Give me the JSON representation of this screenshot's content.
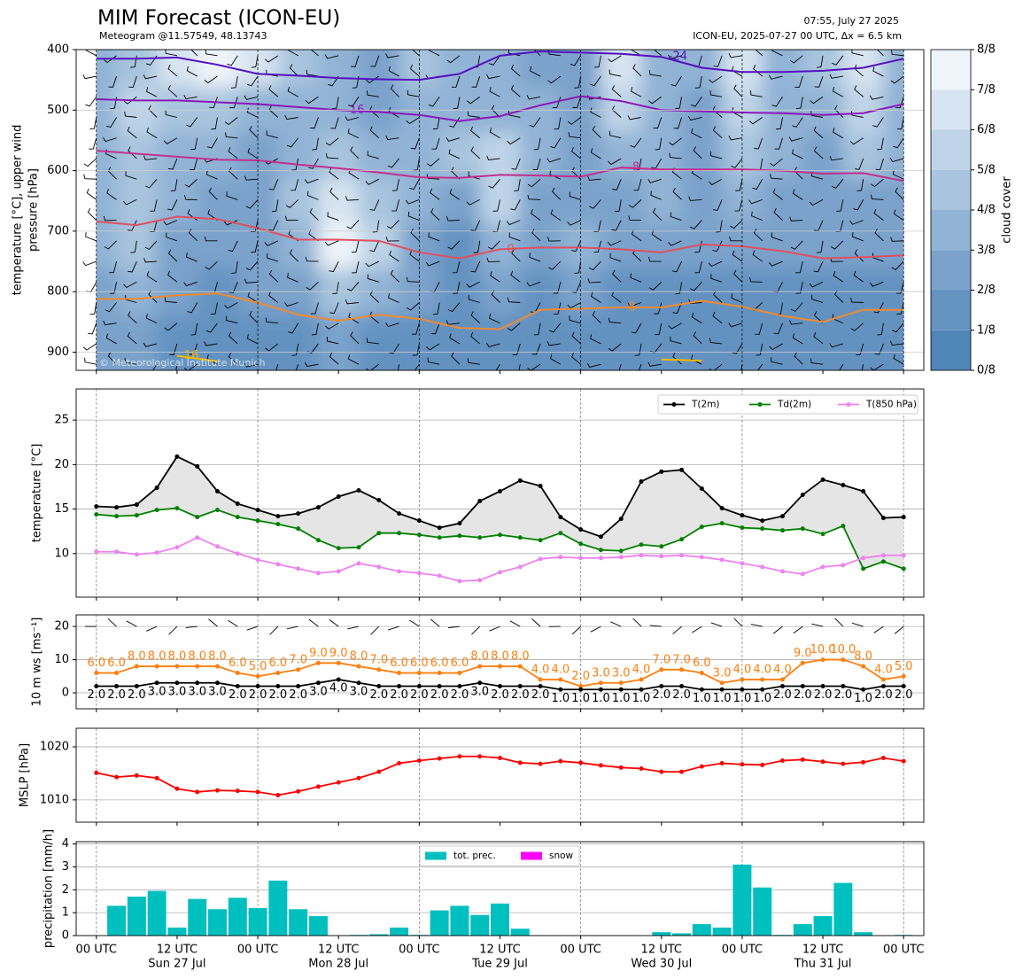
{
  "header": {
    "title": "MIM Forecast (ICON-EU)",
    "subtitle": "Meteogram @11.57549, 48.13743",
    "time": "07:55, July 27 2025",
    "run": "ICON-EU, 2025-07-27 00 UTC, Δx = 6.5 km",
    "watermark": "© Meteorological Institute Munich"
  },
  "chart_data": [
    {
      "type": "contour",
      "ylabel": [
        "temperature [°C], upper wind",
        "pressure [hPa]"
      ],
      "xlim": [
        -3,
        123
      ],
      "ylim": [
        400,
        930
      ],
      "y_inverted": true,
      "yticks": [
        400,
        500,
        600,
        700,
        800,
        900
      ],
      "grid": true,
      "x": [
        0,
        6,
        12,
        18,
        24,
        30,
        36,
        42,
        48,
        54,
        60,
        66,
        72,
        78,
        84,
        90,
        96,
        102,
        108,
        114,
        120
      ],
      "levels": [
        425,
        500,
        575,
        650,
        725,
        800,
        875
      ],
      "cloud_cover": [
        [
          3,
          3,
          3,
          3,
          3,
          2,
          2
        ],
        [
          4,
          5,
          4,
          4,
          4,
          3,
          2
        ],
        [
          6,
          4,
          3,
          3,
          2,
          2,
          1
        ],
        [
          7,
          4,
          3,
          2,
          2,
          1,
          1
        ],
        [
          6,
          3,
          2,
          2,
          2,
          2,
          1
        ],
        [
          4,
          3,
          3,
          4,
          3,
          2,
          1
        ],
        [
          3,
          3,
          4,
          6,
          7,
          4,
          2
        ],
        [
          2,
          2,
          3,
          4,
          5,
          3,
          1
        ],
        [
          4,
          3,
          3,
          3,
          2,
          2,
          1
        ],
        [
          3,
          3,
          4,
          2,
          1,
          1,
          1
        ],
        [
          3,
          3,
          5,
          5,
          3,
          2,
          1
        ],
        [
          2,
          3,
          3,
          2,
          2,
          1,
          1
        ],
        [
          2,
          2,
          2,
          2,
          3,
          2,
          1
        ],
        [
          6,
          5,
          3,
          2,
          2,
          1,
          1
        ],
        [
          3,
          3,
          3,
          3,
          2,
          1,
          1
        ],
        [
          3,
          2,
          2,
          2,
          2,
          1,
          1
        ],
        [
          6,
          5,
          4,
          3,
          2,
          1,
          1
        ],
        [
          3,
          3,
          3,
          2,
          2,
          1,
          1
        ],
        [
          4,
          3,
          2,
          2,
          2,
          1,
          1
        ],
        [
          6,
          5,
          4,
          2,
          2,
          1,
          1
        ],
        [
          3,
          3,
          3,
          2,
          2,
          1,
          1
        ]
      ],
      "colors": [
        "#4f86b8",
        "#6492c1",
        "#7aa2cb",
        "#91b3d5",
        "#a8c4de",
        "#bfd4e8",
        "#d7e4f1",
        "#eef4f9"
      ],
      "colorbar_label": "cloud cover",
      "colorbar_ticks": [
        {
          "value": 0,
          "label": "0/8"
        },
        {
          "value": 1,
          "label": "1/8"
        },
        {
          "value": 2,
          "label": "2/8"
        },
        {
          "value": 3,
          "label": "3/8"
        },
        {
          "value": 4,
          "label": "4/8"
        },
        {
          "value": 5,
          "label": "5/8"
        },
        {
          "value": 6,
          "label": "6/8"
        },
        {
          "value": 7,
          "label": "7/8"
        },
        {
          "value": 8,
          "label": "8/8"
        }
      ],
      "series": [
        {
          "name": "-24",
          "color": "#5510c0",
          "values": [
            415,
            415,
            413,
            425,
            440,
            443,
            447,
            449,
            450,
            440,
            410,
            403,
            405,
            407,
            412,
            430,
            437,
            437,
            435,
            430,
            415
          ]
        },
        {
          "name": "-16",
          "color": "#8a18b8",
          "values": [
            482,
            484,
            484,
            487,
            490,
            495,
            500,
            503,
            508,
            518,
            510,
            492,
            477,
            485,
            500,
            502,
            504,
            505,
            508,
            505,
            490
          ]
        },
        {
          "name": "-8",
          "color": "#c0308f",
          "values": [
            567,
            572,
            577,
            582,
            583,
            590,
            596,
            603,
            611,
            612,
            607,
            608,
            610,
            595,
            598,
            598,
            598,
            600,
            605,
            604,
            617
          ]
        },
        {
          "name": "0",
          "color": "#e05060",
          "values": [
            684,
            690,
            676,
            680,
            695,
            714,
            714,
            716,
            735,
            745,
            730,
            727,
            727,
            730,
            735,
            722,
            725,
            733,
            745,
            743,
            740
          ]
        },
        {
          "name": "8",
          "color": "#f08a30",
          "values": [
            812,
            812,
            806,
            803,
            818,
            838,
            848,
            838,
            845,
            860,
            862,
            830,
            828,
            826,
            826,
            815,
            825,
            840,
            850,
            830,
            830
          ]
        },
        {
          "name": "16",
          "color": "#f5b800",
          "values": [
            null,
            null,
            906,
            915,
            null,
            null,
            null,
            null,
            null,
            null,
            null,
            null,
            null,
            null,
            912,
            914,
            null,
            null,
            null,
            null,
            null
          ]
        }
      ]
    },
    {
      "type": "line",
      "ylabel": "temperature [°C]",
      "xlim": [
        -3,
        123
      ],
      "ylim": [
        5.1,
        28.5
      ],
      "yticks": [
        10,
        15,
        20,
        25
      ],
      "grid": true,
      "fill_between": [
        0,
        1
      ],
      "x": [
        0,
        3,
        6,
        9,
        12,
        15,
        18,
        21,
        24,
        27,
        30,
        33,
        36,
        39,
        42,
        45,
        48,
        51,
        54,
        57,
        60,
        63,
        66,
        69,
        72,
        75,
        78,
        81,
        84,
        87,
        90,
        93,
        96,
        99,
        102,
        105,
        108,
        111,
        114,
        117,
        120
      ],
      "series": [
        {
          "name": "T(2m)",
          "color": "#000000",
          "values": [
            15.3,
            15.2,
            15.5,
            17.4,
            20.9,
            19.8,
            17.0,
            15.6,
            14.9,
            14.2,
            14.5,
            15.2,
            16.4,
            17.1,
            16.0,
            14.5,
            13.7,
            12.9,
            13.4,
            15.9,
            17.0,
            18.2,
            17.6,
            14.1,
            12.7,
            11.9,
            13.9,
            18.1,
            19.2,
            19.4,
            17.3,
            15.1,
            14.3,
            13.7,
            14.2,
            16.6,
            18.3,
            17.7,
            17.0,
            14.0,
            14.1
          ]
        },
        {
          "name": "Td(2m)",
          "color": "#008000",
          "values": [
            14.4,
            14.2,
            14.3,
            14.9,
            15.1,
            14.1,
            14.9,
            14.1,
            13.7,
            13.3,
            12.8,
            11.5,
            10.6,
            10.7,
            12.3,
            12.3,
            12.1,
            11.8,
            12.0,
            11.8,
            12.1,
            11.8,
            11.5,
            12.3,
            11.1,
            10.4,
            10.3,
            11.0,
            10.8,
            11.6,
            13.0,
            13.4,
            12.9,
            12.8,
            12.6,
            12.8,
            12.2,
            13.1,
            8.3,
            9.1,
            8.3
          ]
        },
        {
          "name": "T(850 hPa)",
          "color": "#ee82ee",
          "values": [
            10.2,
            10.2,
            9.9,
            10.1,
            10.7,
            11.8,
            10.8,
            10.0,
            9.3,
            8.8,
            8.3,
            7.8,
            8.0,
            8.9,
            8.5,
            8.0,
            7.8,
            7.5,
            6.9,
            7.0,
            7.9,
            8.5,
            9.4,
            9.6,
            9.5,
            9.5,
            9.6,
            9.8,
            9.7,
            9.8,
            9.6,
            9.3,
            8.9,
            8.5,
            8.0,
            7.7,
            8.5,
            8.7,
            9.5,
            9.8,
            9.8
          ]
        }
      ]
    },
    {
      "type": "line",
      "ylabel": "10 m ws [ms⁻¹]",
      "xlim": [
        -3,
        123
      ],
      "ylim": [
        -4.8,
        23.5
      ],
      "yticks": [
        0,
        10,
        20
      ],
      "grid": true,
      "x": [
        0,
        3,
        6,
        9,
        12,
        15,
        18,
        21,
        24,
        27,
        30,
        33,
        36,
        39,
        42,
        45,
        48,
        51,
        54,
        57,
        60,
        63,
        66,
        69,
        72,
        75,
        78,
        81,
        84,
        87,
        90,
        93,
        96,
        99,
        102,
        105,
        108,
        111,
        114,
        117,
        120
      ],
      "series": [
        {
          "color": "#ff7f0e",
          "values": [
            6,
            6,
            8,
            8,
            8,
            8,
            8,
            6,
            5,
            6,
            7,
            9,
            9,
            8,
            7,
            6,
            6,
            6,
            6,
            8,
            8,
            8,
            4,
            4,
            2,
            3,
            3,
            4,
            7,
            7,
            6,
            3,
            4,
            4,
            4,
            9,
            10,
            10,
            8,
            4,
            5
          ],
          "value_labels": [
            "6.0",
            "6.0",
            "8.0",
            "8.0",
            "8.0",
            "8.0",
            "8.0",
            "6.0",
            "5.0",
            "6.0",
            "7.0",
            "9.0",
            "9.0",
            "8.0",
            "7.0",
            "6.0",
            "6.0",
            "6.0",
            "6.0",
            "8.0",
            "8.0",
            "8.0",
            "4.0",
            "4.0",
            "2.0",
            "3.0",
            "3.0",
            "4.0",
            "7.0",
            "7.0",
            "6.0",
            "3.0",
            "4.0",
            "4.0",
            "4.0",
            "9.0",
            "10.0",
            "10.0",
            "8.0",
            "4.0",
            "5.0"
          ]
        },
        {
          "color": "#000000",
          "values": [
            2,
            2,
            2,
            3,
            3,
            3,
            3,
            2,
            2,
            2,
            2,
            3,
            4,
            3,
            2,
            2,
            2,
            2,
            2,
            3,
            2,
            2,
            2,
            1,
            1,
            1,
            1,
            1,
            2,
            2,
            1,
            1,
            1,
            1,
            2,
            2,
            2,
            2,
            1,
            2,
            2
          ],
          "value_labels": [
            "2.0",
            "2.0",
            "2.0",
            "3.0",
            "3.0",
            "3.0",
            "3.0",
            "2.0",
            "2.0",
            "2.0",
            "2.0",
            "3.0",
            "4.0",
            "3.0",
            "2.0",
            "2.0",
            "2.0",
            "2.0",
            "2.0",
            "3.0",
            "2.0",
            "2.0",
            "2.0",
            "1.0",
            "1.0",
            "1.0",
            "1.0",
            "1.0",
            "2.0",
            "2.0",
            "1.0",
            "1.0",
            "1.0",
            "1.0",
            "2.0",
            "2.0",
            "2.0",
            "2.0",
            "1.0",
            "2.0",
            "2.0"
          ]
        }
      ]
    },
    {
      "type": "line",
      "ylabel": "MSLP [hPa]",
      "xlim": [
        -3,
        123
      ],
      "ylim": [
        1005.8,
        1023.5
      ],
      "yticks": [
        1010,
        1020
      ],
      "grid": true,
      "x": [
        0,
        3,
        6,
        9,
        12,
        15,
        18,
        21,
        24,
        27,
        30,
        33,
        36,
        39,
        42,
        45,
        48,
        51,
        54,
        57,
        60,
        63,
        66,
        69,
        72,
        75,
        78,
        81,
        84,
        87,
        90,
        93,
        96,
        99,
        102,
        105,
        108,
        111,
        114,
        117,
        120
      ],
      "series": [
        {
          "color": "#ff0000",
          "values": [
            1015.1,
            1014.3,
            1014.6,
            1014.1,
            1012.1,
            1011.5,
            1011.8,
            1011.7,
            1011.5,
            1010.9,
            1011.6,
            1012.5,
            1013.3,
            1014.1,
            1015.3,
            1016.9,
            1017.4,
            1017.8,
            1018.2,
            1018.2,
            1017.9,
            1017.0,
            1016.8,
            1017.3,
            1017.0,
            1016.5,
            1016.1,
            1015.9,
            1015.3,
            1015.3,
            1016.3,
            1016.9,
            1016.7,
            1016.6,
            1017.4,
            1017.6,
            1017.2,
            1016.8,
            1017.1,
            1017.9,
            1017.3
          ]
        }
      ]
    },
    {
      "type": "bar",
      "ylabel": "precipitation [mm/h]",
      "xlim": [
        -3,
        123
      ],
      "ylim": [
        0,
        4.1
      ],
      "yticks": [
        0,
        1,
        2,
        3,
        4
      ],
      "grid": true,
      "x": [
        3,
        6,
        9,
        12,
        15,
        18,
        21,
        24,
        27,
        30,
        33,
        36,
        39,
        42,
        45,
        48,
        51,
        54,
        57,
        60,
        63,
        66,
        69,
        72,
        75,
        78,
        81,
        84,
        87,
        90,
        93,
        96,
        99,
        102,
        105,
        108,
        111,
        114,
        117,
        120
      ],
      "xticks": [
        {
          "value": 0,
          "label": "00 UTC"
        },
        {
          "value": 12,
          "label": "12 UTC"
        },
        {
          "value": 24,
          "label": "00 UTC"
        },
        {
          "value": 36,
          "label": "12 UTC"
        },
        {
          "value": 48,
          "label": "00 UTC"
        },
        {
          "value": 60,
          "label": "12 UTC"
        },
        {
          "value": 72,
          "label": "00 UTC"
        },
        {
          "value": 84,
          "label": "12 UTC"
        },
        {
          "value": 96,
          "label": "00 UTC"
        },
        {
          "value": 108,
          "label": "12 UTC"
        },
        {
          "value": 120,
          "label": "00 UTC"
        }
      ],
      "day_labels": [
        {
          "value": 12,
          "label": "Sun 27 Jul"
        },
        {
          "value": 36,
          "label": "Mon 28 Jul"
        },
        {
          "value": 60,
          "label": "Tue 29 Jul"
        },
        {
          "value": 84,
          "label": "Wed 30 Jul"
        },
        {
          "value": 108,
          "label": "Thu 31 Jul"
        }
      ],
      "series": [
        {
          "name": "tot. prec.",
          "color": "#00bfbf",
          "values": [
            1.3,
            1.7,
            1.95,
            0.35,
            1.6,
            1.15,
            1.65,
            1.2,
            2.4,
            1.15,
            0.85,
            0,
            0.03,
            0.06,
            0.35,
            0.03,
            1.1,
            1.3,
            0.9,
            1.4,
            0.3,
            0.02,
            0,
            0,
            0,
            0,
            0,
            0.15,
            0.1,
            0.5,
            0.35,
            3.1,
            2.1,
            0.03,
            0.5,
            0.85,
            2.3,
            0.15,
            0,
            0.03
          ]
        },
        {
          "name": "snow",
          "color": "#ff00ff",
          "values": [
            0,
            0,
            0,
            0,
            0,
            0,
            0,
            0,
            0,
            0,
            0,
            0,
            0,
            0,
            0,
            0,
            0,
            0,
            0,
            0,
            0,
            0,
            0,
            0,
            0,
            0,
            0,
            0,
            0,
            0,
            0,
            0,
            0,
            0,
            0,
            0,
            0,
            0,
            0,
            0
          ]
        }
      ]
    }
  ]
}
